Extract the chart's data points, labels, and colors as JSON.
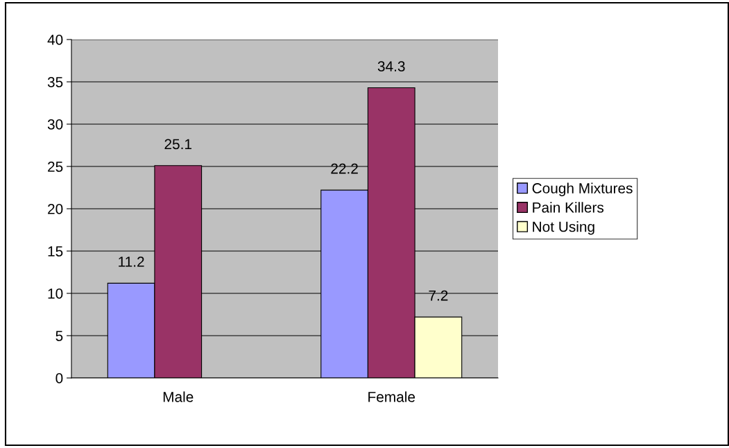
{
  "chart_data": {
    "type": "bar",
    "categories": [
      "Male",
      "Female"
    ],
    "series": [
      {
        "name": "Cough Mixtures",
        "color": "#9999ff",
        "values": [
          11.2,
          22.2
        ]
      },
      {
        "name": "Pain Killers",
        "color": "#993366",
        "values": [
          25.1,
          34.3
        ]
      },
      {
        "name": "Not Using",
        "color": "#ffffcc",
        "values": [
          null,
          7.2
        ]
      }
    ],
    "ylim": [
      0,
      40
    ],
    "yticks": [
      0,
      5,
      10,
      15,
      20,
      25,
      30,
      35,
      40
    ],
    "grid": "y",
    "legend": "right",
    "data_labels": true
  }
}
